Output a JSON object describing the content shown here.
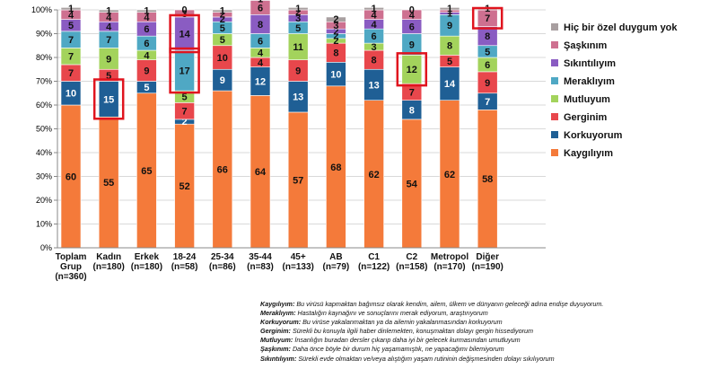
{
  "chart_data": {
    "type": "stacked-bar",
    "ylim": [
      0,
      100
    ],
    "y_ticks": [
      "0%",
      "10%",
      "20%",
      "30%",
      "40%",
      "50%",
      "60%",
      "70%",
      "80%",
      "90%",
      "100%"
    ],
    "categories": [
      {
        "name": "Toplam Grup",
        "line1": "Toplam",
        "line2": "Grup",
        "line3": "(n=360)"
      },
      {
        "name": "Kadın",
        "line1": "Kadın",
        "line2": "(n=180)",
        "line3": ""
      },
      {
        "name": "Erkek",
        "line1": "Erkek",
        "line2": "(n=180)",
        "line3": ""
      },
      {
        "name": "18-24",
        "line1": "18-24",
        "line2": "(n=58)",
        "line3": ""
      },
      {
        "name": "25-34",
        "line1": "25-34",
        "line2": "(n=86)",
        "line3": ""
      },
      {
        "name": "35-44",
        "line1": "35-44",
        "line2": "(n=83)",
        "line3": ""
      },
      {
        "name": "45+",
        "line1": "45+",
        "line2": "(n=133)",
        "line3": ""
      },
      {
        "name": "AB",
        "line1": "AB",
        "line2": "(n=79)",
        "line3": ""
      },
      {
        "name": "C1",
        "line1": "C1",
        "line2": "(n=122)",
        "line3": ""
      },
      {
        "name": "C2",
        "line1": "C2",
        "line2": "(n=158)",
        "line3": ""
      },
      {
        "name": "Metropol",
        "line1": "Metropol",
        "line2": "(n=170)",
        "line3": ""
      },
      {
        "name": "Diğer",
        "line1": "Diğer",
        "line2": "(n=190)",
        "line3": ""
      }
    ],
    "series": [
      {
        "name": "Kaygılıyım",
        "color": "#F47A3A",
        "values": [
          60,
          55,
          65,
          52,
          66,
          64,
          57,
          68,
          62,
          54,
          62,
          58
        ]
      },
      {
        "name": "Korkuyorum",
        "color": "#1F5F95",
        "values": [
          10,
          15,
          5,
          2,
          9,
          12,
          13,
          10,
          13,
          8,
          14,
          7
        ]
      },
      {
        "name": "Gerginim",
        "color": "#E8474C",
        "values": [
          7,
          5,
          9,
          7,
          10,
          4,
          9,
          8,
          8,
          7,
          5,
          9
        ]
      },
      {
        "name": "Mutluyum",
        "color": "#A3D35C",
        "values": [
          7,
          9,
          4,
          5,
          5,
          4,
          11,
          2,
          3,
          12,
          8,
          6
        ]
      },
      {
        "name": "Meraklıyım",
        "color": "#4FA8C4",
        "values": [
          7,
          7,
          6,
          17,
          5,
          6,
          5,
          2,
          6,
          9,
          9,
          5
        ]
      },
      {
        "name": "Sıkıntılıyım",
        "color": "#8A5CC2",
        "values": [
          5,
          4,
          6,
          14,
          2,
          8,
          3,
          2,
          4,
          6,
          1,
          8
        ]
      },
      {
        "name": "Şaşkınım",
        "color": "#CE7090",
        "values": [
          4,
          4,
          4,
          3,
          2,
          6,
          2,
          3,
          4,
          4,
          1,
          7
        ]
      },
      {
        "name": "Hiç bir özel duygum yok",
        "color": "#A89FA0",
        "values": [
          1,
          1,
          1,
          0,
          1,
          1,
          1,
          2,
          1,
          0,
          1,
          1
        ]
      }
    ],
    "legend_order": [
      "Hiç bir özel duygum yok",
      "Şaşkınım",
      "Sıkıntılıyım",
      "Meraklıyım",
      "Mutluyum",
      "Gerginim",
      "Korkuyorum",
      "Kaygılıyım"
    ],
    "highlights": [
      {
        "category": "Kadın",
        "series": "Korkuyorum",
        "value": 15
      },
      {
        "category": "18-24",
        "series": "Meraklıyım",
        "value": 17
      },
      {
        "category": "18-24",
        "series": "Sıkıntılıyım",
        "value": 14
      },
      {
        "category": "C2",
        "series": "Mutluyum",
        "value": 12
      },
      {
        "category": "Diğer",
        "series": "Şaşkınım",
        "value": 7
      }
    ],
    "highlight_color": "#E0141E"
  },
  "definitions": [
    {
      "term": "Kaygılıyım:",
      "text": " Bu virüsü kapmaktan bağımsız olarak kendim, ailem, ülkem ve dünyanın geleceği adına endişe duyuyorum."
    },
    {
      "term": "Meraklıyım:",
      "text": " Hastalığın kaynağını ve sonuçlarını merak ediyorum, araştırıyorum"
    },
    {
      "term": "Korkuyorum:",
      "text": " Bu virüse yakalanmaktan ya da ailemin yakalanmasından korkuyorum"
    },
    {
      "term": "Gerginim:",
      "text": " Sürekli bu konuyla ilgili haber dinlemekten, konuşmaktan dolayı gergin hissediyorum"
    },
    {
      "term": "Mutluyum:",
      "text": " İnsanlığın buradan dersler çıkarıp daha iyi bir gelecek kurmasından umutluyum"
    },
    {
      "term": "Şaşkınım:",
      "text": " Daha önce böyle bir durum hiç yaşamamıştık, ne yapacağımı bilemiyorum"
    },
    {
      "term": "Sıkıntılıyım:",
      "text": " Sürekli evde olmaktan ve/veya alıştığım yaşam rutininin değişmesinden dolayı sıkılıyorum"
    }
  ]
}
